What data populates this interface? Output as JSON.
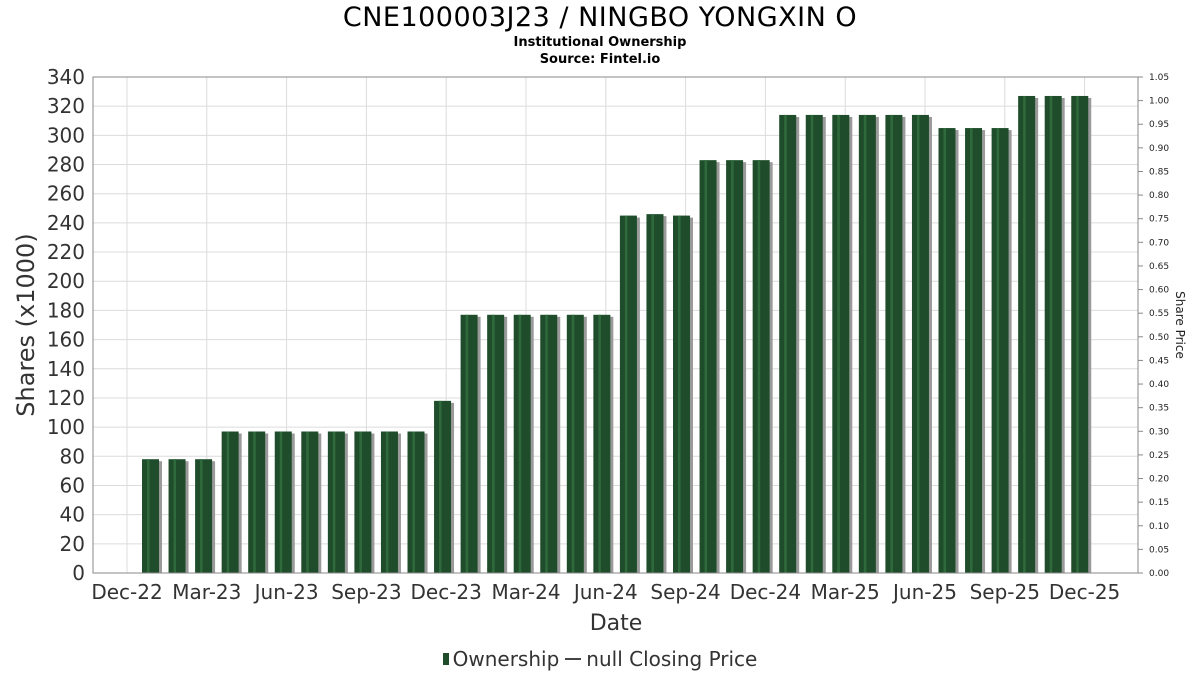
{
  "header": {
    "title": "CNE100003J23 / NINGBO YONGXIN O",
    "subtitle1": "Institutional Ownership",
    "subtitle2": "Source: Fintel.io"
  },
  "legend": {
    "ownership_label": "Ownership",
    "price_label": "null Closing Price"
  },
  "colors": {
    "bar": "#1f4d2b",
    "bar_shadow": "#9a9a9a",
    "grid": "#dcdcdc"
  },
  "chart_data": {
    "type": "bar",
    "xlabel": "Date",
    "ylabel": "Shares (x1000)",
    "y2label": "Share Price",
    "ylim": [
      0,
      340
    ],
    "y2lim": [
      0,
      1.05
    ],
    "yticks": [
      0,
      20,
      40,
      60,
      80,
      100,
      120,
      140,
      160,
      180,
      200,
      220,
      240,
      260,
      280,
      300,
      320,
      340
    ],
    "y2ticks": [
      "0.00",
      "0.05",
      "0.10",
      "0.15",
      "0.20",
      "0.25",
      "0.30",
      "0.35",
      "0.40",
      "0.45",
      "0.50",
      "0.55",
      "0.60",
      "0.65",
      "0.70",
      "0.75",
      "0.80",
      "0.85",
      "0.90",
      "0.95",
      "1.00",
      "1.05"
    ],
    "xticks": [
      "Dec-22",
      "Mar-23",
      "Jun-23",
      "Sep-23",
      "Dec-23",
      "Mar-24",
      "Jun-24",
      "Sep-24",
      "Dec-24",
      "Mar-25",
      "Jun-25",
      "Sep-25",
      "Dec-25"
    ],
    "grid": true,
    "legend_position": "bottom",
    "series": [
      {
        "name": "Ownership",
        "values": [
          78,
          78,
          78,
          97,
          97,
          97,
          97,
          97,
          97,
          97,
          97,
          118,
          177,
          177,
          177,
          177,
          177,
          177,
          245,
          246,
          245,
          283,
          283,
          283,
          314,
          314,
          314,
          314,
          314,
          314,
          305,
          305,
          305,
          327,
          327,
          327
        ]
      }
    ]
  }
}
